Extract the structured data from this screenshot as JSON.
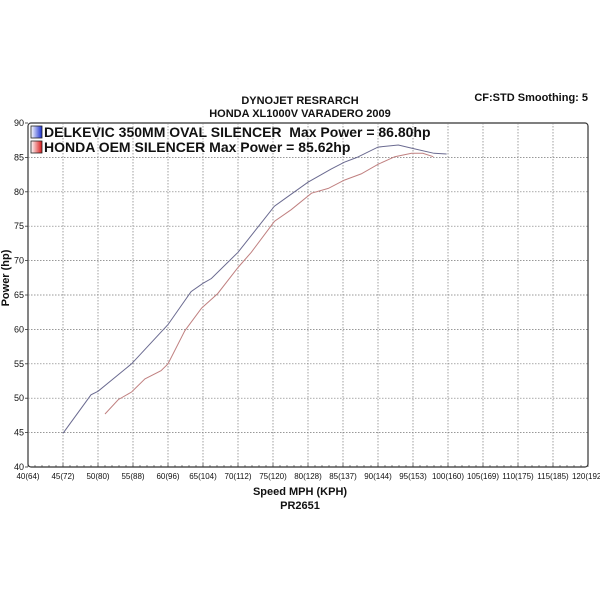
{
  "chart_data": {
    "type": "line",
    "title": "DYNOJET RESRARCH",
    "subtitle": "HONDA XL1000V VARADERO 2009",
    "corner_note": "CF:STD Smoothing: 5",
    "xlabel": "Speed MPH (KPH)",
    "footer": "PR2651",
    "ylabel": "Power (hp)",
    "xlim": [
      40,
      120
    ],
    "ylim": [
      40,
      90
    ],
    "grid": true,
    "legend_placement": "top-left",
    "x_ticks": [
      40,
      45,
      50,
      55,
      60,
      65,
      70,
      75,
      80,
      85,
      90,
      95,
      100,
      105,
      110,
      115,
      120
    ],
    "x_tick_labels": [
      "40(64)",
      "45(72)",
      "50(80)",
      "55(88)",
      "60(96)",
      "65(104)",
      "70(112)",
      "75(120)",
      "80(128)",
      "85(137)",
      "90(144)",
      "95(153)",
      "100(160)",
      "105(169)",
      "110(175)",
      "115(185)",
      "120(192)"
    ],
    "y_ticks": [
      40,
      45,
      50,
      55,
      60,
      65,
      70,
      75,
      80,
      85,
      90
    ],
    "y_tick_labels": [
      "40",
      "45",
      "50",
      "55",
      "60",
      "65",
      "70",
      "75",
      "80",
      "85",
      "90"
    ],
    "series": [
      {
        "name": "DELKEVIC 350MM OVAL SILENCER  Max Power = 86.80hp",
        "color": "#1a2fd0",
        "line_color": "#6a6a90",
        "x": [
          45,
          49,
          50,
          54.8,
          60,
          63.3,
          65,
          66.2,
          70,
          75.2,
          76.7,
          80,
          83.3,
          85.2,
          87,
          90,
          92.9,
          95,
          98,
          99.8
        ],
        "y": [
          44.9,
          50.5,
          51,
          55,
          60.7,
          65.5,
          66.7,
          67.4,
          71.2,
          77.9,
          79,
          81.4,
          83.3,
          84.3,
          85,
          86.5,
          86.8,
          86.3,
          85.6,
          85.5
        ]
      },
      {
        "name": "HONDA OEM SILENCER Max Power = 85.62hp",
        "color": "#d81818",
        "line_color": "#c08080",
        "x": [
          51,
          52.9,
          54.8,
          56.7,
          59,
          60,
          62.4,
          64.8,
          67.1,
          70,
          71.9,
          75.2,
          77.6,
          80.5,
          82.9,
          85.2,
          87.6,
          90,
          92.4,
          94.8,
          96.4,
          97.9
        ],
        "y": [
          47.7,
          49.8,
          50.9,
          52.8,
          54,
          55,
          59.8,
          63.1,
          65.2,
          69,
          71.2,
          75.7,
          77.4,
          79.8,
          80.5,
          81.7,
          82.6,
          84,
          85.1,
          85.6,
          85.6,
          85.1
        ]
      }
    ]
  }
}
